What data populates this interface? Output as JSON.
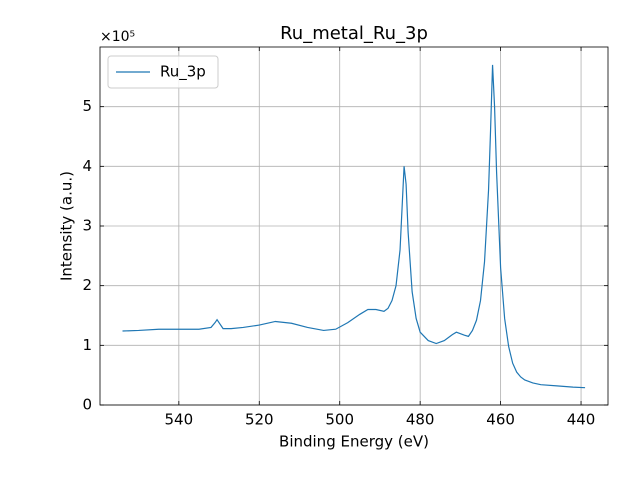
{
  "chart_data": {
    "type": "line",
    "title": "Ru_metal_Ru_3p",
    "x_label": "Binding Energy (eV)",
    "y_label": "Intensity (a.u.)",
    "y_multiplier": "×10⁵",
    "xlim": [
      559.6,
      433.3
    ],
    "xticks": [
      540,
      520,
      500,
      480,
      460,
      440
    ],
    "ylim": [
      0,
      6.0
    ],
    "yticks": [
      0,
      1,
      2,
      3,
      4,
      5
    ],
    "grid": true,
    "legend": "upper left",
    "x": [
      554,
      550,
      545,
      540,
      535,
      532,
      531,
      530.5,
      530,
      529,
      527,
      524,
      520,
      516,
      512,
      508,
      504,
      501,
      498,
      495,
      493,
      491,
      489,
      488,
      487,
      486,
      485,
      484.5,
      484,
      483.5,
      483,
      482,
      481,
      480,
      478,
      476,
      474,
      472,
      471,
      469,
      468,
      467,
      466,
      465,
      464,
      463,
      462.5,
      462,
      461.5,
      461,
      460,
      459,
      458,
      457,
      456,
      455,
      454,
      452,
      450,
      446,
      442,
      439
    ],
    "series": [
      {
        "name": "Ru_3p",
        "color": "#1f77b4",
        "values": [
          1.24,
          1.25,
          1.27,
          1.27,
          1.27,
          1.3,
          1.38,
          1.43,
          1.38,
          1.28,
          1.28,
          1.3,
          1.34,
          1.4,
          1.37,
          1.3,
          1.25,
          1.27,
          1.38,
          1.52,
          1.6,
          1.6,
          1.57,
          1.62,
          1.75,
          2.0,
          2.6,
          3.3,
          4.0,
          3.7,
          2.9,
          1.9,
          1.45,
          1.22,
          1.08,
          1.03,
          1.08,
          1.18,
          1.22,
          1.17,
          1.15,
          1.25,
          1.42,
          1.75,
          2.4,
          3.6,
          4.6,
          5.7,
          5.0,
          3.9,
          2.3,
          1.45,
          0.98,
          0.7,
          0.55,
          0.47,
          0.42,
          0.37,
          0.34,
          0.32,
          0.3,
          0.29
        ]
      }
    ]
  }
}
